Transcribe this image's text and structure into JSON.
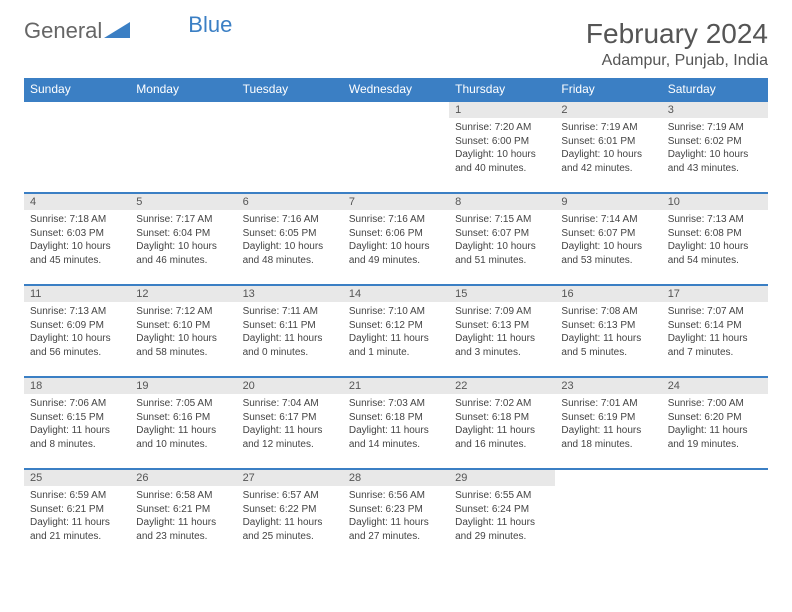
{
  "brand": {
    "general": "General",
    "blue": "Blue"
  },
  "title": "February 2024",
  "location": "Adampur, Punjab, India",
  "colors": {
    "header_bg": "#3b7fc4",
    "header_text": "#ffffff",
    "date_bar_bg": "#e8e8e8",
    "border": "#3b7fc4",
    "body_text": "#444444"
  },
  "day_names": [
    "Sunday",
    "Monday",
    "Tuesday",
    "Wednesday",
    "Thursday",
    "Friday",
    "Saturday"
  ],
  "weeks": [
    [
      null,
      null,
      null,
      null,
      {
        "date": "1",
        "sunrise": "7:20 AM",
        "sunset": "6:00 PM",
        "daylight": "10 hours and 40 minutes."
      },
      {
        "date": "2",
        "sunrise": "7:19 AM",
        "sunset": "6:01 PM",
        "daylight": "10 hours and 42 minutes."
      },
      {
        "date": "3",
        "sunrise": "7:19 AM",
        "sunset": "6:02 PM",
        "daylight": "10 hours and 43 minutes."
      }
    ],
    [
      {
        "date": "4",
        "sunrise": "7:18 AM",
        "sunset": "6:03 PM",
        "daylight": "10 hours and 45 minutes."
      },
      {
        "date": "5",
        "sunrise": "7:17 AM",
        "sunset": "6:04 PM",
        "daylight": "10 hours and 46 minutes."
      },
      {
        "date": "6",
        "sunrise": "7:16 AM",
        "sunset": "6:05 PM",
        "daylight": "10 hours and 48 minutes."
      },
      {
        "date": "7",
        "sunrise": "7:16 AM",
        "sunset": "6:06 PM",
        "daylight": "10 hours and 49 minutes."
      },
      {
        "date": "8",
        "sunrise": "7:15 AM",
        "sunset": "6:07 PM",
        "daylight": "10 hours and 51 minutes."
      },
      {
        "date": "9",
        "sunrise": "7:14 AM",
        "sunset": "6:07 PM",
        "daylight": "10 hours and 53 minutes."
      },
      {
        "date": "10",
        "sunrise": "7:13 AM",
        "sunset": "6:08 PM",
        "daylight": "10 hours and 54 minutes."
      }
    ],
    [
      {
        "date": "11",
        "sunrise": "7:13 AM",
        "sunset": "6:09 PM",
        "daylight": "10 hours and 56 minutes."
      },
      {
        "date": "12",
        "sunrise": "7:12 AM",
        "sunset": "6:10 PM",
        "daylight": "10 hours and 58 minutes."
      },
      {
        "date": "13",
        "sunrise": "7:11 AM",
        "sunset": "6:11 PM",
        "daylight": "11 hours and 0 minutes."
      },
      {
        "date": "14",
        "sunrise": "7:10 AM",
        "sunset": "6:12 PM",
        "daylight": "11 hours and 1 minute."
      },
      {
        "date": "15",
        "sunrise": "7:09 AM",
        "sunset": "6:13 PM",
        "daylight": "11 hours and 3 minutes."
      },
      {
        "date": "16",
        "sunrise": "7:08 AM",
        "sunset": "6:13 PM",
        "daylight": "11 hours and 5 minutes."
      },
      {
        "date": "17",
        "sunrise": "7:07 AM",
        "sunset": "6:14 PM",
        "daylight": "11 hours and 7 minutes."
      }
    ],
    [
      {
        "date": "18",
        "sunrise": "7:06 AM",
        "sunset": "6:15 PM",
        "daylight": "11 hours and 8 minutes."
      },
      {
        "date": "19",
        "sunrise": "7:05 AM",
        "sunset": "6:16 PM",
        "daylight": "11 hours and 10 minutes."
      },
      {
        "date": "20",
        "sunrise": "7:04 AM",
        "sunset": "6:17 PM",
        "daylight": "11 hours and 12 minutes."
      },
      {
        "date": "21",
        "sunrise": "7:03 AM",
        "sunset": "6:18 PM",
        "daylight": "11 hours and 14 minutes."
      },
      {
        "date": "22",
        "sunrise": "7:02 AM",
        "sunset": "6:18 PM",
        "daylight": "11 hours and 16 minutes."
      },
      {
        "date": "23",
        "sunrise": "7:01 AM",
        "sunset": "6:19 PM",
        "daylight": "11 hours and 18 minutes."
      },
      {
        "date": "24",
        "sunrise": "7:00 AM",
        "sunset": "6:20 PM",
        "daylight": "11 hours and 19 minutes."
      }
    ],
    [
      {
        "date": "25",
        "sunrise": "6:59 AM",
        "sunset": "6:21 PM",
        "daylight": "11 hours and 21 minutes."
      },
      {
        "date": "26",
        "sunrise": "6:58 AM",
        "sunset": "6:21 PM",
        "daylight": "11 hours and 23 minutes."
      },
      {
        "date": "27",
        "sunrise": "6:57 AM",
        "sunset": "6:22 PM",
        "daylight": "11 hours and 25 minutes."
      },
      {
        "date": "28",
        "sunrise": "6:56 AM",
        "sunset": "6:23 PM",
        "daylight": "11 hours and 27 minutes."
      },
      {
        "date": "29",
        "sunrise": "6:55 AM",
        "sunset": "6:24 PM",
        "daylight": "11 hours and 29 minutes."
      },
      null,
      null
    ]
  ],
  "labels": {
    "sunrise": "Sunrise:",
    "sunset": "Sunset:",
    "daylight": "Daylight:"
  }
}
